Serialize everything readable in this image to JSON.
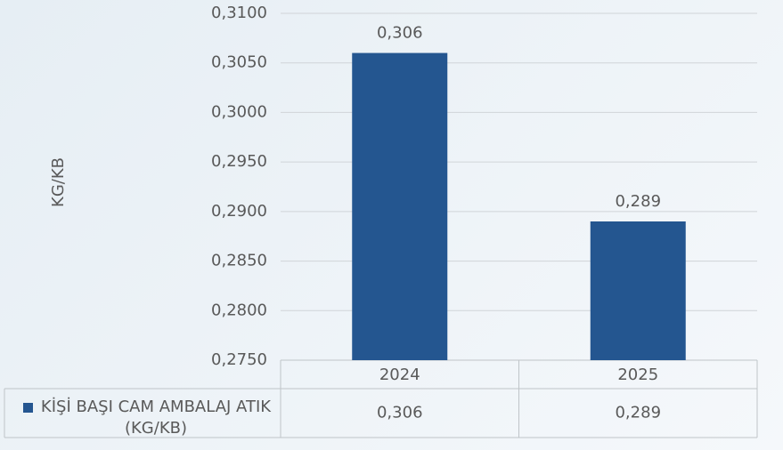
{
  "chart_data": {
    "type": "bar",
    "y_label": "KG/KB",
    "categories": [
      "2024",
      "2025"
    ],
    "series": [
      {
        "name": "KİŞİ BAŞI CAM AMBALAJ ATIK (KG/KB)",
        "color": "#245690",
        "values": [
          0.306,
          0.289
        ],
        "value_labels": [
          "0,306",
          "0,289"
        ]
      }
    ],
    "ylim": [
      0.275,
      0.31
    ],
    "yticks": [
      {
        "value": 0.275,
        "label": "0,2750"
      },
      {
        "value": 0.28,
        "label": "0,2800"
      },
      {
        "value": 0.285,
        "label": "0,2850"
      },
      {
        "value": 0.29,
        "label": "0,2900"
      },
      {
        "value": 0.295,
        "label": "0,2950"
      },
      {
        "value": 0.3,
        "label": "0,3000"
      },
      {
        "value": 0.305,
        "label": "0,3050"
      },
      {
        "value": 0.31,
        "label": "0,3100"
      }
    ],
    "grid": true,
    "data_table": true
  }
}
